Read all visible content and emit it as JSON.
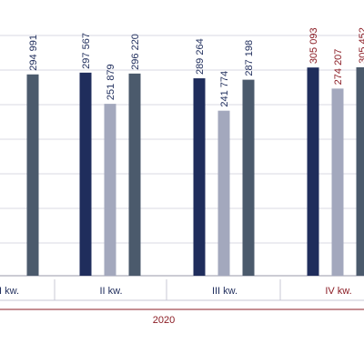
{
  "chart_data": {
    "type": "bar",
    "categories": [
      "I kw.",
      "II kw.",
      "III kw.",
      "IV kw."
    ],
    "year": "2020",
    "series": [
      {
        "color": "#1f2d5c",
        "values": [
          null,
          297567,
          289264,
          305093
        ]
      },
      {
        "color": "#a3a8bd",
        "values": [
          null,
          251879,
          241774,
          274207
        ]
      },
      {
        "color": "#4b5a6c",
        "values": [
          294991,
          296220,
          287198,
          305452
        ]
      }
    ],
    "value_labels": [
      [
        null,
        "297 567",
        "289 264",
        "305 093"
      ],
      [
        null,
        "251 879",
        "241 774",
        "274 207"
      ],
      [
        "294 991",
        "296 220",
        "287 198",
        "305 452"
      ]
    ],
    "highlight_category": 3,
    "highlight_color": "#8b1c24",
    "text_color": "#1f2d5c",
    "axis_line_color": "#8b1c24",
    "grid": true
  }
}
